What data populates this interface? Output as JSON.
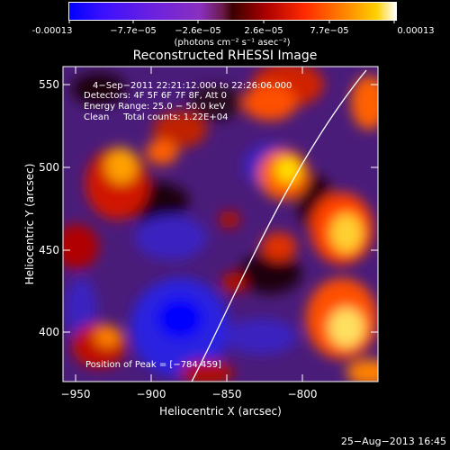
{
  "colorbar": {
    "ticks": [
      "-0.00013",
      "−7.7e−05",
      "−2.6e−05",
      "2.6e−05",
      "7.7e−05",
      "0.00013"
    ],
    "unit_label": "(photons cm⁻² s⁻¹ asec⁻²)"
  },
  "plot": {
    "title": "Reconstructed RHESSI Image",
    "xlabel": "Heliocentric X (arcsec)",
    "ylabel": "Heliocentric Y (arcsec)",
    "x_ticks": [
      "−950",
      "−900",
      "−850",
      "−800"
    ],
    "y_ticks": [
      "550",
      "500",
      "450",
      "400"
    ],
    "info_lines": [
      "4−Sep−2011 22:21:12.000 to 22:26:06.000",
      "Detectors: 4F 5F 6F 7F 8F, Att 0",
      "Energy Range: 25.0 − 50.0 keV",
      "Clean     Total counts: 1.22E+04"
    ],
    "peak_text": "Position of Peak = [−784,459]"
  },
  "footer": {
    "date": "25−Aug−2013 16:45"
  }
}
